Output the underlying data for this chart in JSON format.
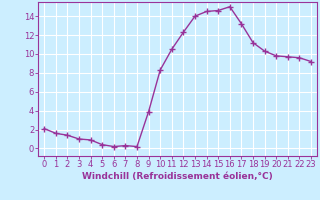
{
  "x": [
    0,
    1,
    2,
    3,
    4,
    5,
    6,
    7,
    8,
    9,
    10,
    11,
    12,
    13,
    14,
    15,
    16,
    17,
    18,
    19,
    20,
    21,
    22,
    23
  ],
  "y": [
    2.1,
    1.6,
    1.4,
    1.0,
    0.9,
    0.4,
    0.2,
    0.3,
    0.2,
    3.9,
    8.3,
    10.5,
    12.3,
    14.0,
    14.5,
    14.6,
    15.0,
    13.2,
    11.2,
    10.3,
    9.8,
    9.7,
    9.6,
    9.2
  ],
  "line_color": "#993399",
  "marker": "+",
  "marker_size": 4,
  "xlabel": "Windchill (Refroidissement éolien,°C)",
  "yticks": [
    0,
    2,
    4,
    6,
    8,
    10,
    12,
    14
  ],
  "xlim": [
    -0.5,
    23.5
  ],
  "ylim": [
    -0.8,
    15.5
  ],
  "bg_color": "#cceeff",
  "grid_color": "#ffffff",
  "label_color": "#993399",
  "xlabel_fontsize": 6.5,
  "tick_fontsize": 6.0,
  "line_width": 1.0,
  "marker_edge_width": 1.0
}
